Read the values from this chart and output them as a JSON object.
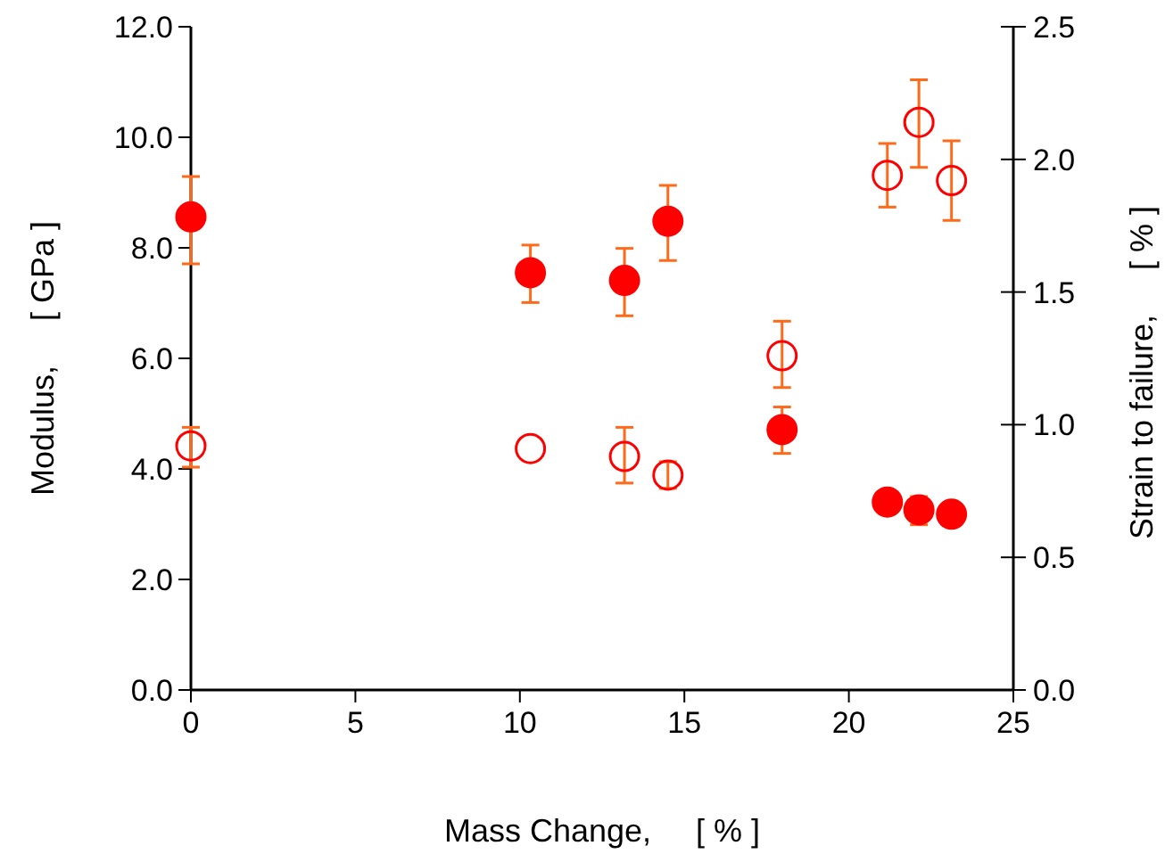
{
  "chart_data": {
    "type": "scatter",
    "xlabel": "Mass Change,     [ % ]",
    "ylabel": "Modulus,     [ GPa ]",
    "y2label": "Strain to failure,     [ % ]",
    "xlim": [
      0,
      25
    ],
    "xticks": [
      0,
      5,
      10,
      15,
      20,
      25
    ],
    "ylim": [
      0,
      12
    ],
    "yticks": [
      {
        "value": 0,
        "label": "0.0"
      },
      {
        "value": 2,
        "label": "2.0"
      },
      {
        "value": 4,
        "label": "4.0"
      },
      {
        "value": 6,
        "label": "6.0"
      },
      {
        "value": 8,
        "label": "8.0"
      },
      {
        "value": 10,
        "label": "10.0"
      },
      {
        "value": 12,
        "label": "12.0"
      }
    ],
    "y2lim": [
      0,
      2.5
    ],
    "y2ticks": [
      {
        "value": 0,
        "label": "0.0"
      },
      0.5,
      {
        "value": 1,
        "label": "1.0"
      },
      1.5,
      {
        "value": 2,
        "label": "2.0"
      },
      2.5
    ],
    "grid": false,
    "marker": "circle",
    "series": [
      {
        "color": "#ff0000",
        "x": [
          0,
          10.32,
          13.18,
          14.5,
          17.97,
          21.17,
          22.13,
          23.12
        ],
        "values": [
          8.56,
          7.55,
          7.41,
          8.48,
          4.71,
          3.4,
          3.26,
          3.18
        ],
        "errors": [
          [
            7.71,
            9.29
          ],
          [
            7.01,
            8.05
          ],
          [
            6.77,
            7.99
          ],
          [
            7.77,
            9.13
          ],
          [
            4.28,
            5.12
          ],
          null,
          [
            2.99,
            3.5
          ],
          null
        ]
      },
      {
        "color": "#ff0000",
        "axis": "y2",
        "x": [
          0,
          10.32,
          13.18,
          14.5,
          17.97,
          21.17,
          22.13,
          23.12
        ],
        "values": [
          0.92,
          0.91,
          0.88,
          0.81,
          1.26,
          1.94,
          2.14,
          1.92
        ],
        "errors": [
          [
            0.84,
            0.99
          ],
          null,
          [
            0.78,
            0.99
          ],
          [
            0.76,
            0.86
          ],
          [
            1.14,
            1.39
          ],
          [
            1.82,
            2.06
          ],
          [
            1.97,
            2.3
          ],
          [
            1.77,
            2.07
          ]
        ]
      }
    ]
  }
}
